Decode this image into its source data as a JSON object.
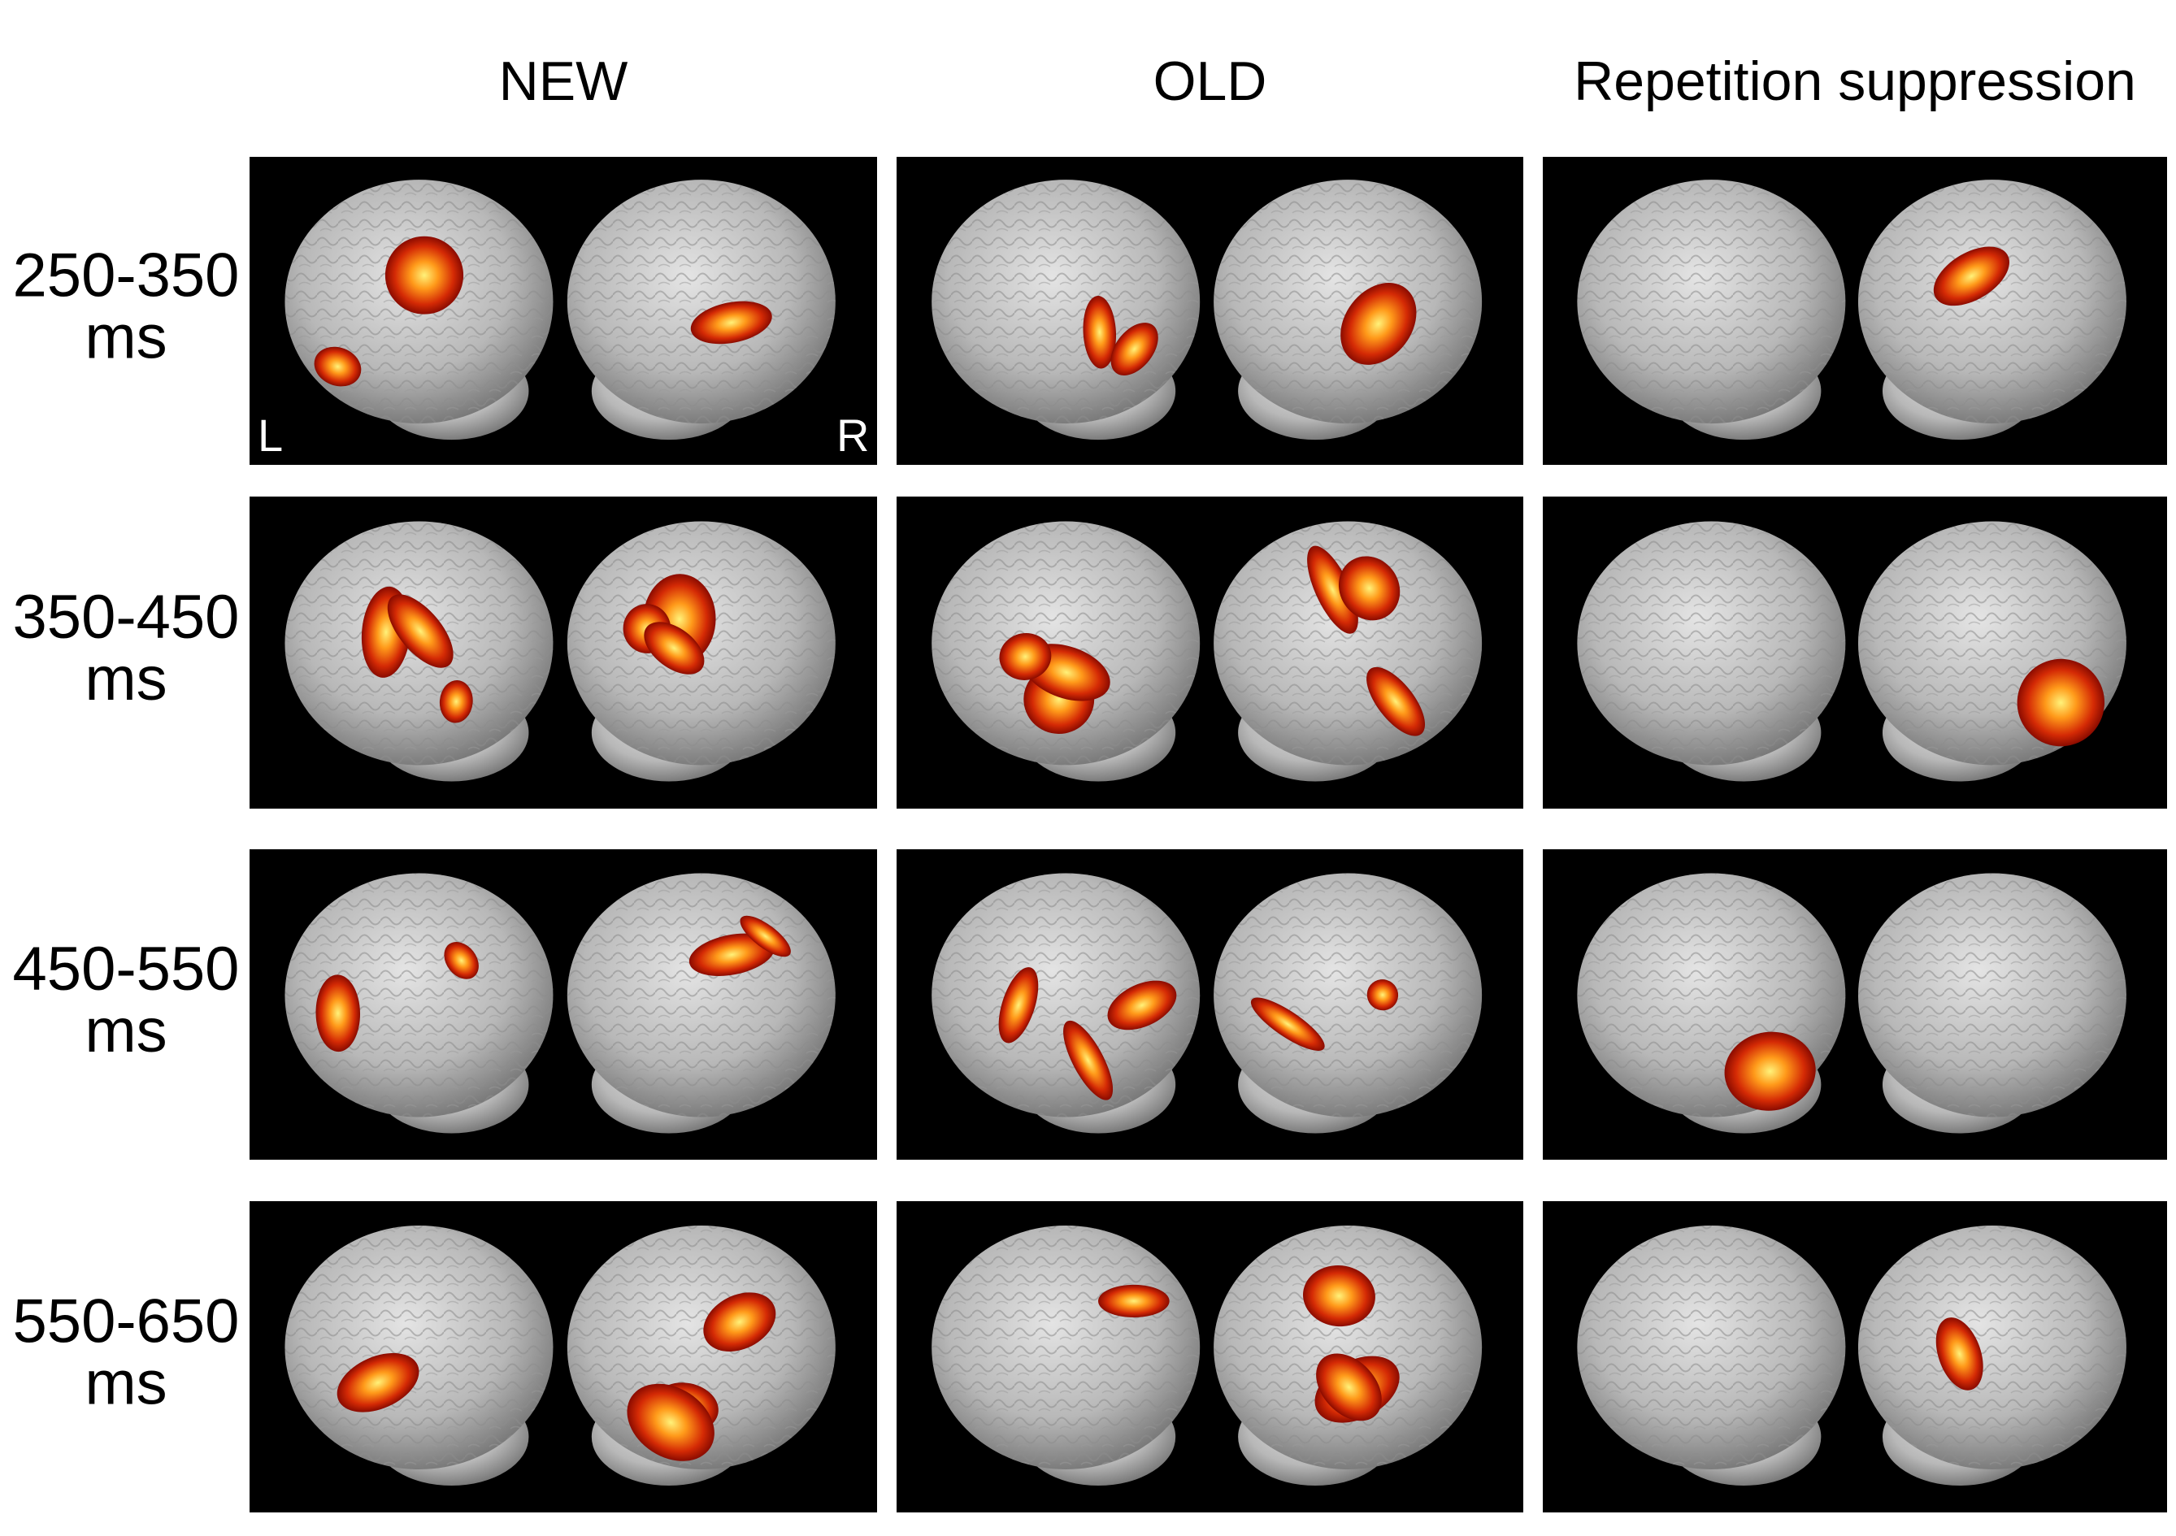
{
  "columns": [
    "NEW",
    "OLD",
    "Repetition suppression"
  ],
  "rows": [
    {
      "time": "250-350",
      "unit": "ms"
    },
    {
      "time": "350-450",
      "unit": "ms"
    },
    {
      "time": "450-550",
      "unit": "ms"
    },
    {
      "time": "550-650",
      "unit": "ms"
    }
  ],
  "hemispheres": [
    "L",
    "R"
  ]
}
